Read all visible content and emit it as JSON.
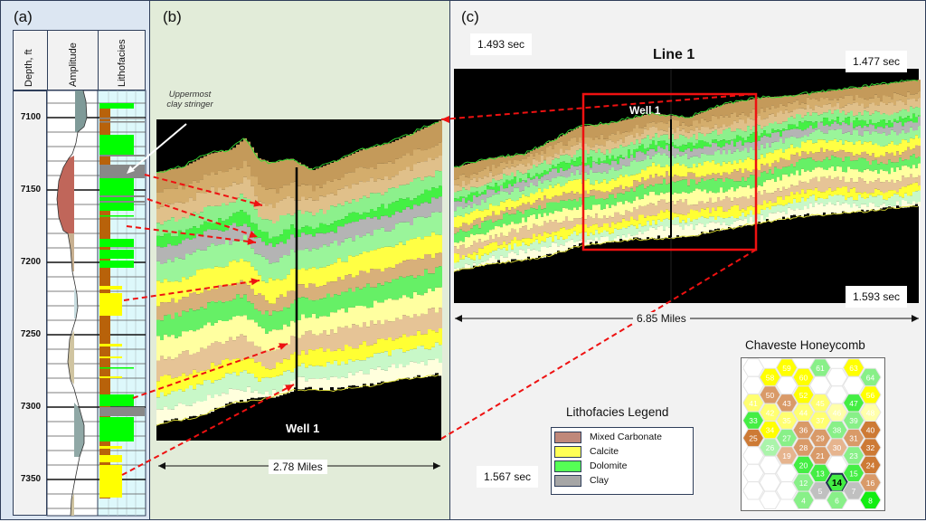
{
  "panel_a": {
    "label": "(a)",
    "headers": [
      "Depth, ft",
      "Amplitude",
      "Lithofacies"
    ],
    "depths": [
      "7100",
      "7150",
      "7200",
      "7250",
      "7300",
      "7350"
    ]
  },
  "panel_b": {
    "label": "(b)",
    "annotation_line1": "Uppermost",
    "annotation_line2": "clay stringer",
    "well_label": "Well 1",
    "distance": "2.78 Miles"
  },
  "panel_c": {
    "label": "(c)",
    "title": "Line 1",
    "well_label": "Well 1",
    "time_top_left": "1.493 sec",
    "time_top_right": "1.477 sec",
    "time_bottom_right": "1.593 sec",
    "time_bottom_left": "1.567 sec",
    "distance": "6.85 Miles"
  },
  "legend": {
    "title": "Lithofacies Legend",
    "items": [
      {
        "label": "Mixed Carbonate",
        "color": "#c0887a"
      },
      {
        "label": "Calcite",
        "color": "#ffff55"
      },
      {
        "label": "Dolomite",
        "color": "#55ff55"
      },
      {
        "label": "Clay",
        "color": "#a6a6a6"
      }
    ]
  },
  "honeycomb": {
    "title": "Chaveste Honeycomb",
    "highlighted": "14",
    "palette": {
      "E": "#ffffff",
      "Y": "#ffff00",
      "LY": "#ffff70",
      "PY": "#ffffaa",
      "T": "#d99a68",
      "LT": "#e6b48e",
      "DO": "#cd7a35",
      "G": "#44ee44",
      "LG": "#88f088",
      "PG": "#aaf4aa",
      "GR": "#c0c0c0",
      "BG": "#11ee11"
    },
    "columns": [
      [
        [
          "",
          "E"
        ],
        [
          "",
          "E"
        ],
        [
          "41",
          "LY"
        ],
        [
          "33",
          "G"
        ],
        [
          "25",
          "DO"
        ],
        [
          "",
          "E"
        ],
        [
          "",
          "E"
        ],
        [
          "",
          "E"
        ]
      ],
      [
        [
          "58",
          "Y"
        ],
        [
          "50",
          "T"
        ],
        [
          "42",
          "LY"
        ],
        [
          "34",
          "Y"
        ],
        [
          "26",
          "PG"
        ],
        [
          "",
          "E"
        ],
        [
          "",
          "E"
        ],
        [
          "",
          "E"
        ]
      ],
      [
        [
          "59",
          "Y"
        ],
        [
          "",
          "E"
        ],
        [
          "43",
          "T"
        ],
        [
          "35",
          "LY"
        ],
        [
          "27",
          "LG"
        ],
        [
          "19",
          "LT"
        ],
        [
          "",
          "E"
        ],
        [
          "",
          "E"
        ]
      ],
      [
        [
          "60",
          "Y"
        ],
        [
          "52",
          "Y"
        ],
        [
          "44",
          "LY"
        ],
        [
          "36",
          "T"
        ],
        [
          "28",
          "T"
        ],
        [
          "20",
          "G"
        ],
        [
          "12",
          "LG"
        ],
        [
          "4",
          "LG"
        ]
      ],
      [
        [
          "61",
          "LG"
        ],
        [
          "",
          "E"
        ],
        [
          "45",
          "LY"
        ],
        [
          "37",
          "LY"
        ],
        [
          "29",
          "T"
        ],
        [
          "21",
          "T"
        ],
        [
          "13",
          "G"
        ],
        [
          "5",
          "GR"
        ]
      ],
      [
        [
          "",
          "E"
        ],
        [
          "",
          "E"
        ],
        [
          "46",
          "PY"
        ],
        [
          "38",
          "LG"
        ],
        [
          "30",
          "LT"
        ],
        [
          "",
          "E"
        ],
        [
          "14",
          "G"
        ],
        [
          "6",
          "LG"
        ]
      ],
      [
        [
          "63",
          "Y"
        ],
        [
          "",
          "E"
        ],
        [
          "47",
          "G"
        ],
        [
          "39",
          "LG"
        ],
        [
          "31",
          "T"
        ],
        [
          "23",
          "LG"
        ],
        [
          "15",
          "G"
        ],
        [
          "7",
          "GR"
        ]
      ],
      [
        [
          "64",
          "LG"
        ],
        [
          "56",
          "Y"
        ],
        [
          "48",
          "PY"
        ],
        [
          "40",
          "DO"
        ],
        [
          "32",
          "DO"
        ],
        [
          "24",
          "DO"
        ],
        [
          "16",
          "T"
        ],
        [
          "8",
          "BG"
        ]
      ]
    ]
  },
  "colors": {
    "arrow": "#ee1111",
    "seismic_bands": [
      "#c49a5a",
      "#d4ad6c",
      "#e0c08a",
      "#8cf08c",
      "#44f044",
      "#b4b4b4",
      "#9af59a",
      "#ffff44",
      "#d8b07a",
      "#66f066",
      "#ffffa0",
      "#e6c496",
      "#ffff33",
      "#c8f8c8",
      "#ffffdd",
      "#ffffff"
    ]
  }
}
